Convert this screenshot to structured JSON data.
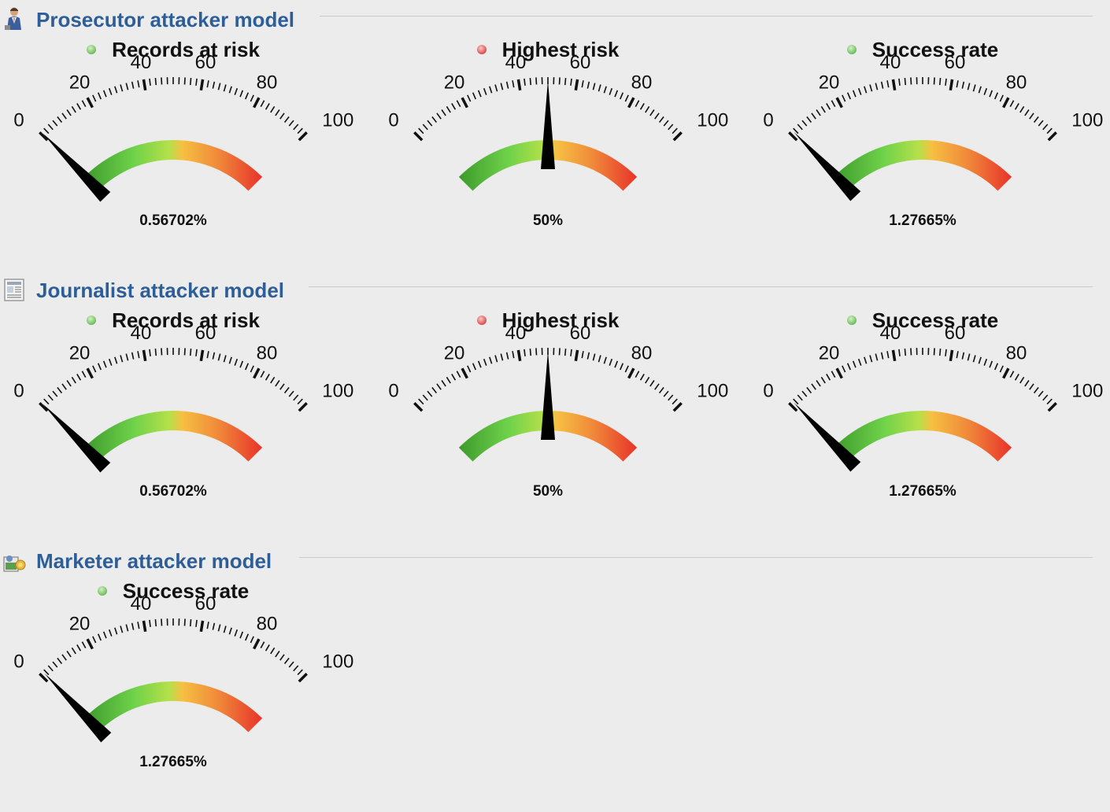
{
  "sections": [
    {
      "title": "Prosecutor attacker model",
      "icon": "prosecutor-icon",
      "gauges": [
        {
          "legend": "Records at risk",
          "status_color": "#7dc56a",
          "value": 0.56702,
          "value_text": "0.56702%"
        },
        {
          "legend": "Highest risk",
          "status_color": "#e06060",
          "value": 50,
          "value_text": "50%"
        },
        {
          "legend": "Success rate",
          "status_color": "#7dc56a",
          "value": 1.27665,
          "value_text": "1.27665%"
        }
      ]
    },
    {
      "title": "Journalist attacker model",
      "icon": "journalist-icon",
      "gauges": [
        {
          "legend": "Records at risk",
          "status_color": "#7dc56a",
          "value": 0.56702,
          "value_text": "0.56702%"
        },
        {
          "legend": "Highest risk",
          "status_color": "#e06060",
          "value": 50,
          "value_text": "50%"
        },
        {
          "legend": "Success rate",
          "status_color": "#7dc56a",
          "value": 1.27665,
          "value_text": "1.27665%"
        }
      ]
    },
    {
      "title": "Marketer attacker model",
      "icon": "marketer-icon",
      "gauges": [
        {
          "legend": "Success rate",
          "status_color": "#7dc56a",
          "value": 1.27665,
          "value_text": "1.27665%"
        }
      ]
    }
  ],
  "scale": {
    "min": 0,
    "max": 100,
    "major_labels": [
      "0",
      "20",
      "40",
      "60",
      "80",
      "100"
    ]
  },
  "colors": {
    "title": "#2d5e98",
    "needle": "#000000",
    "arc_low": "#3c9a2c",
    "arc_mid": "#f6c042",
    "arc_high": "#e8332a"
  }
}
